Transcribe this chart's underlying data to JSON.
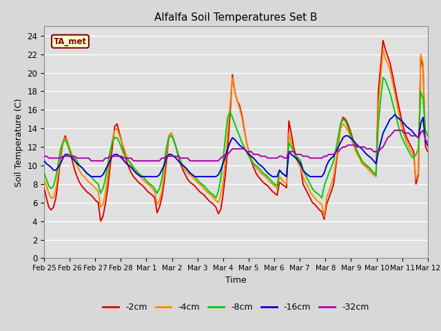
{
  "title": "Alfalfa Soil Temperatures Set B",
  "xlabel": "Time",
  "ylabel": "Soil Temperature (C)",
  "annotation": "TA_met",
  "annotation_box_color": "#ffffcc",
  "annotation_text_color": "#800000",
  "annotation_border_color": "#800000",
  "ylim": [
    0,
    25
  ],
  "yticks": [
    0,
    2,
    4,
    6,
    8,
    10,
    12,
    14,
    16,
    18,
    20,
    22,
    24
  ],
  "bg_color": "#d8d8d8",
  "plot_bg_color": "#e0e0e0",
  "grid_color": "#ffffff",
  "series_order": [
    "-2cm",
    "-4cm",
    "-8cm",
    "-16cm",
    "-32cm"
  ],
  "series": {
    "-2cm": {
      "color": "#dd0000",
      "lw": 1.4
    },
    "-4cm": {
      "color": "#ff8800",
      "lw": 1.4
    },
    "-8cm": {
      "color": "#00cc00",
      "lw": 1.4
    },
    "-16cm": {
      "color": "#0000cc",
      "lw": 1.4
    },
    "-32cm": {
      "color": "#aa00aa",
      "lw": 1.4
    }
  },
  "x_labels": [
    "Feb 25",
    "Feb 26",
    "Feb 27",
    "Feb 28",
    "Mar 1",
    "Mar 2",
    "Mar 3",
    "Mar 4",
    "Mar 5",
    "Mar 6",
    "Mar 7",
    "Mar 8",
    "Mar 9",
    "Mar 10",
    "Mar 11",
    "Mar 12"
  ],
  "data_2cm": [
    7.5,
    6.5,
    5.5,
    5.2,
    5.5,
    6.5,
    8.5,
    10.8,
    12.5,
    13.2,
    12.5,
    11.5,
    10.5,
    9.5,
    8.8,
    8.2,
    7.8,
    7.5,
    7.2,
    7.0,
    6.8,
    6.5,
    6.2,
    6.0,
    4.0,
    4.5,
    5.8,
    7.5,
    9.8,
    12.0,
    14.2,
    14.5,
    13.5,
    12.5,
    11.5,
    10.5,
    9.8,
    9.2,
    8.8,
    8.5,
    8.2,
    8.0,
    7.8,
    7.5,
    7.2,
    7.0,
    6.8,
    6.5,
    4.9,
    5.5,
    6.5,
    8.2,
    10.5,
    13.2,
    13.5,
    12.8,
    12.0,
    11.0,
    10.2,
    9.5,
    9.0,
    8.5,
    8.2,
    8.0,
    7.8,
    7.5,
    7.2,
    7.0,
    6.8,
    6.5,
    6.2,
    6.0,
    5.8,
    5.5,
    4.8,
    5.2,
    6.8,
    9.0,
    11.8,
    15.5,
    19.8,
    18.0,
    17.0,
    16.5,
    15.5,
    14.0,
    12.5,
    11.5,
    10.5,
    9.8,
    9.2,
    8.8,
    8.5,
    8.2,
    8.0,
    7.8,
    7.5,
    7.2,
    7.0,
    6.8,
    8.2,
    8.0,
    7.8,
    7.6,
    14.8,
    13.5,
    12.0,
    11.0,
    10.5,
    9.8,
    8.0,
    7.5,
    7.0,
    6.5,
    6.0,
    5.8,
    5.5,
    5.2,
    5.0,
    4.2,
    5.8,
    6.5,
    7.2,
    8.0,
    10.0,
    12.0,
    14.5,
    15.2,
    15.0,
    14.5,
    13.8,
    13.0,
    12.2,
    11.5,
    11.0,
    10.5,
    10.2,
    10.0,
    9.8,
    9.5,
    9.2,
    9.0,
    18.0,
    20.8,
    23.5,
    22.5,
    21.8,
    21.0,
    19.8,
    18.5,
    17.2,
    16.0,
    14.8,
    13.8,
    13.0,
    12.5,
    12.0,
    11.5,
    8.0,
    9.0,
    21.8,
    20.5,
    12.0,
    11.5
  ],
  "data_4cm": [
    8.5,
    7.8,
    7.0,
    6.5,
    6.5,
    7.5,
    9.2,
    11.2,
    12.5,
    13.0,
    12.5,
    11.8,
    11.0,
    10.5,
    10.0,
    9.5,
    9.0,
    8.8,
    8.5,
    8.2,
    8.0,
    7.8,
    7.5,
    7.2,
    5.5,
    5.8,
    7.0,
    8.8,
    11.0,
    12.8,
    13.8,
    14.0,
    13.2,
    12.5,
    11.8,
    11.0,
    10.5,
    10.0,
    9.5,
    9.2,
    9.0,
    8.8,
    8.5,
    8.2,
    8.0,
    7.8,
    7.5,
    7.2,
    5.8,
    6.2,
    7.2,
    9.0,
    11.2,
    13.2,
    13.5,
    12.8,
    12.0,
    11.2,
    10.5,
    9.8,
    9.5,
    9.2,
    9.0,
    8.8,
    8.5,
    8.2,
    8.0,
    7.8,
    7.5,
    7.2,
    7.0,
    6.8,
    6.5,
    6.2,
    6.0,
    6.8,
    8.2,
    10.5,
    13.5,
    16.5,
    19.5,
    18.0,
    17.0,
    16.2,
    15.2,
    13.8,
    12.5,
    11.5,
    10.8,
    10.2,
    9.8,
    9.5,
    9.2,
    9.0,
    8.8,
    8.5,
    8.2,
    8.0,
    7.8,
    7.5,
    8.8,
    8.5,
    8.2,
    8.0,
    13.5,
    12.5,
    11.5,
    10.8,
    10.2,
    9.8,
    8.8,
    8.2,
    7.8,
    7.2,
    6.8,
    6.5,
    6.2,
    6.0,
    5.8,
    4.5,
    6.5,
    7.2,
    8.0,
    8.8,
    10.5,
    12.2,
    14.0,
    14.5,
    14.2,
    13.8,
    13.2,
    12.5,
    11.8,
    11.2,
    10.8,
    10.2,
    10.0,
    9.8,
    9.5,
    9.2,
    9.0,
    8.8,
    16.5,
    19.5,
    22.5,
    21.5,
    21.0,
    20.2,
    19.0,
    17.8,
    16.5,
    15.2,
    14.0,
    13.2,
    12.5,
    12.0,
    11.5,
    11.0,
    8.5,
    9.2,
    22.0,
    21.0,
    12.5,
    12.0
  ],
  "data_8cm": [
    9.2,
    8.5,
    7.8,
    7.5,
    7.8,
    8.8,
    10.2,
    11.8,
    12.5,
    12.8,
    12.2,
    11.5,
    11.0,
    10.8,
    10.5,
    10.0,
    9.8,
    9.5,
    9.2,
    9.0,
    8.8,
    8.5,
    8.2,
    8.0,
    7.0,
    7.5,
    8.5,
    10.0,
    11.5,
    12.5,
    13.0,
    13.0,
    12.5,
    11.8,
    11.2,
    10.8,
    10.5,
    10.2,
    9.8,
    9.5,
    9.2,
    9.0,
    8.8,
    8.5,
    8.2,
    8.0,
    7.8,
    7.5,
    7.0,
    7.5,
    8.5,
    10.2,
    12.0,
    13.0,
    13.2,
    12.8,
    12.0,
    11.2,
    10.5,
    10.0,
    9.8,
    9.5,
    9.2,
    9.0,
    8.8,
    8.5,
    8.2,
    8.0,
    7.8,
    7.5,
    7.2,
    7.0,
    6.8,
    6.5,
    7.2,
    8.5,
    10.5,
    13.0,
    15.2,
    15.8,
    15.2,
    14.5,
    13.8,
    13.2,
    12.5,
    12.0,
    11.5,
    11.0,
    10.5,
    10.2,
    10.0,
    9.8,
    9.5,
    9.2,
    9.0,
    8.8,
    8.5,
    8.2,
    8.0,
    7.8,
    9.5,
    9.2,
    9.0,
    8.8,
    12.5,
    12.0,
    11.5,
    11.0,
    10.8,
    10.5,
    9.5,
    9.0,
    8.5,
    8.0,
    7.5,
    7.2,
    7.0,
    6.8,
    6.5,
    7.8,
    8.5,
    9.2,
    9.8,
    10.5,
    11.8,
    13.2,
    14.5,
    15.0,
    14.8,
    14.2,
    13.5,
    12.8,
    12.2,
    11.5,
    11.0,
    10.5,
    10.2,
    10.0,
    9.8,
    9.5,
    9.2,
    9.0,
    14.5,
    17.2,
    19.5,
    19.2,
    18.5,
    17.8,
    16.8,
    15.8,
    14.8,
    13.8,
    13.0,
    12.5,
    12.0,
    11.5,
    11.0,
    10.8,
    11.2,
    11.8,
    18.0,
    17.2,
    13.8,
    13.2
  ],
  "data_16cm": [
    10.5,
    10.2,
    10.0,
    9.8,
    9.5,
    9.5,
    9.8,
    10.2,
    10.8,
    11.2,
    11.2,
    11.0,
    10.8,
    10.5,
    10.2,
    10.0,
    9.8,
    9.5,
    9.2,
    9.0,
    8.8,
    8.8,
    8.8,
    8.8,
    8.8,
    9.0,
    9.5,
    10.0,
    10.5,
    11.0,
    11.2,
    11.2,
    11.0,
    10.8,
    10.5,
    10.2,
    10.0,
    9.8,
    9.5,
    9.2,
    9.0,
    8.8,
    8.8,
    8.8,
    8.8,
    8.8,
    8.8,
    8.8,
    8.8,
    9.0,
    9.5,
    10.0,
    10.8,
    11.2,
    11.2,
    11.0,
    10.8,
    10.5,
    10.2,
    10.0,
    9.8,
    9.5,
    9.2,
    9.0,
    8.8,
    8.8,
    8.8,
    8.8,
    8.8,
    8.8,
    8.8,
    8.8,
    8.8,
    8.8,
    9.0,
    9.5,
    10.2,
    11.0,
    11.8,
    12.5,
    13.0,
    12.8,
    12.5,
    12.2,
    12.0,
    11.8,
    11.5,
    11.2,
    11.0,
    10.8,
    10.5,
    10.2,
    10.0,
    9.8,
    9.5,
    9.2,
    9.0,
    8.8,
    8.8,
    8.8,
    9.5,
    9.2,
    9.0,
    8.8,
    11.5,
    11.2,
    11.0,
    10.8,
    10.5,
    10.2,
    9.5,
    9.2,
    9.0,
    8.8,
    8.8,
    8.8,
    8.8,
    8.8,
    8.8,
    9.2,
    10.0,
    10.5,
    10.8,
    11.0,
    11.5,
    12.0,
    12.5,
    13.0,
    13.2,
    13.2,
    13.0,
    12.8,
    12.5,
    12.2,
    12.0,
    11.8,
    11.5,
    11.2,
    11.0,
    10.8,
    10.5,
    10.2,
    11.5,
    12.5,
    13.5,
    14.0,
    14.5,
    15.0,
    15.2,
    15.5,
    15.2,
    15.0,
    14.8,
    14.5,
    14.2,
    14.0,
    13.8,
    13.5,
    13.2,
    13.0,
    14.5,
    15.2,
    12.5,
    12.2
  ],
  "data_32cm": [
    11.0,
    11.0,
    10.8,
    10.8,
    10.8,
    10.8,
    10.8,
    10.8,
    11.0,
    11.0,
    11.0,
    11.0,
    11.0,
    11.0,
    10.8,
    10.8,
    10.8,
    10.8,
    10.8,
    10.8,
    10.5,
    10.5,
    10.5,
    10.5,
    10.5,
    10.5,
    10.8,
    10.8,
    11.0,
    11.0,
    11.0,
    11.0,
    11.0,
    11.0,
    10.8,
    10.8,
    10.8,
    10.8,
    10.5,
    10.5,
    10.5,
    10.5,
    10.5,
    10.5,
    10.5,
    10.5,
    10.5,
    10.5,
    10.5,
    10.5,
    10.8,
    10.8,
    11.0,
    11.0,
    11.0,
    11.0,
    11.0,
    11.0,
    10.8,
    10.8,
    10.8,
    10.8,
    10.5,
    10.5,
    10.5,
    10.5,
    10.5,
    10.5,
    10.5,
    10.5,
    10.5,
    10.5,
    10.5,
    10.5,
    10.5,
    10.8,
    11.0,
    11.2,
    11.2,
    11.5,
    11.8,
    11.8,
    11.8,
    11.8,
    11.8,
    11.8,
    11.5,
    11.5,
    11.5,
    11.2,
    11.2,
    11.2,
    11.0,
    11.0,
    11.0,
    10.8,
    10.8,
    10.8,
    10.8,
    10.8,
    11.0,
    11.0,
    10.8,
    10.8,
    11.5,
    11.5,
    11.5,
    11.2,
    11.2,
    11.2,
    11.0,
    11.0,
    11.0,
    10.8,
    10.8,
    10.8,
    10.8,
    10.8,
    10.8,
    11.0,
    11.0,
    11.2,
    11.2,
    11.2,
    11.5,
    11.5,
    11.8,
    12.0,
    12.0,
    12.2,
    12.2,
    12.2,
    12.2,
    12.0,
    12.0,
    12.0,
    12.0,
    11.8,
    11.8,
    11.8,
    11.5,
    11.5,
    11.5,
    11.8,
    12.0,
    12.5,
    13.0,
    13.2,
    13.5,
    13.8,
    13.8,
    13.8,
    13.8,
    13.5,
    13.5,
    13.5,
    13.2,
    13.2,
    13.2,
    13.0,
    13.5,
    13.8,
    12.8,
    12.5
  ]
}
